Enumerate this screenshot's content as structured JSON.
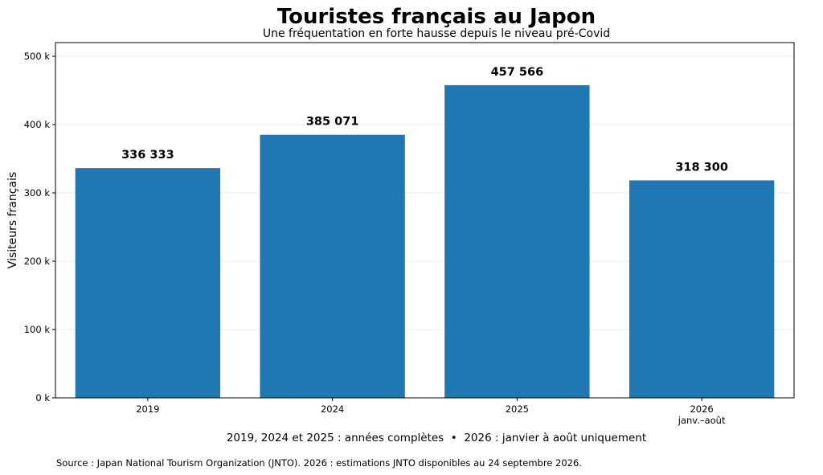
{
  "chart_data": {
    "type": "bar",
    "title": "Touristes français au Japon",
    "subtitle": "Une fréquentation en forte hausse depuis le niveau pré-Covid",
    "categories": [
      "2019",
      "2024",
      "2025",
      "2026"
    ],
    "category_sublabels": [
      "",
      "",
      "",
      "janv.–août"
    ],
    "values": [
      336333,
      385071,
      457566,
      318300
    ],
    "value_labels": [
      "336 333",
      "385 071",
      "457 566",
      "318 300"
    ],
    "xlabel": "",
    "ylabel": "Visiteurs français",
    "ylim": [
      0,
      520000
    ],
    "yticks": [
      0,
      100000,
      200000,
      300000,
      400000,
      500000
    ],
    "ytick_labels": [
      "0 k",
      "100 k",
      "200 k",
      "300 k",
      "400 k",
      "500 k"
    ],
    "grid": "horizontal",
    "bar_color": "#1f77b4",
    "note": "2019, 2024 et 2025 : années complètes  •  2026 : janvier à août uniquement",
    "source": "Source : Japan National Tourism Organization (JNTO). 2026 : estimations JNTO disponibles au 24 septembre 2026."
  }
}
